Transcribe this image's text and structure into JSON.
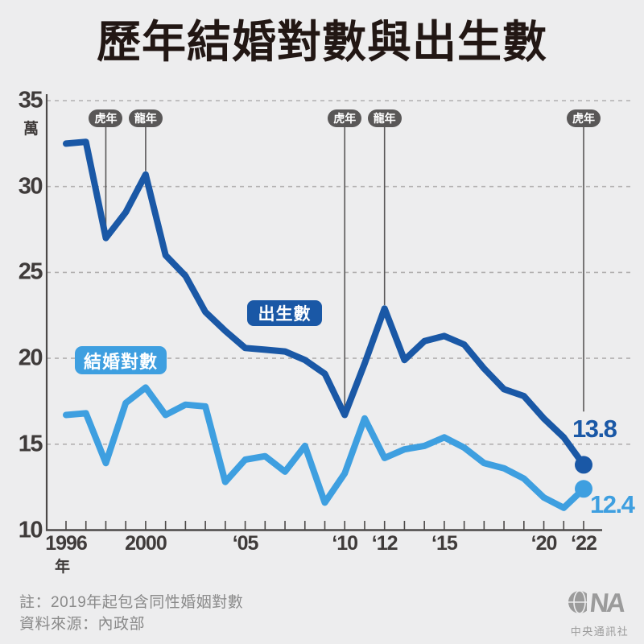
{
  "title": "歷年結婚對數與出生數",
  "chart_data": {
    "type": "line",
    "x": [
      1996,
      1997,
      1998,
      1999,
      2000,
      2001,
      2002,
      2003,
      2004,
      2005,
      2006,
      2007,
      2008,
      2009,
      2010,
      2011,
      2012,
      2013,
      2014,
      2015,
      2016,
      2017,
      2018,
      2019,
      2020,
      2021,
      2022
    ],
    "x_axis_unit": "年",
    "y_axis_unit": "萬",
    "y_ticks": [
      35,
      30,
      25,
      20,
      15,
      10
    ],
    "ylim": [
      10,
      35
    ],
    "grid": "dashed-horizontal",
    "x_tick_labels": [
      {
        "year": 1996,
        "label": "1996"
      },
      {
        "year": 2000,
        "label": "2000"
      },
      {
        "year": 2005,
        "label": "‘05"
      },
      {
        "year": 2010,
        "label": "‘10"
      },
      {
        "year": 2012,
        "label": "‘12"
      },
      {
        "year": 2015,
        "label": "‘15"
      },
      {
        "year": 2020,
        "label": "‘20"
      },
      {
        "year": 2022,
        "label": "‘22"
      }
    ],
    "series": [
      {
        "name": "出生數",
        "color": "#1a58a6",
        "end_label": "13.8",
        "values": [
          32.5,
          32.6,
          27.0,
          28.5,
          30.7,
          26.0,
          24.8,
          22.7,
          21.6,
          20.6,
          20.5,
          20.4,
          19.9,
          19.1,
          16.7,
          19.7,
          22.9,
          19.9,
          21.0,
          21.3,
          20.8,
          19.4,
          18.2,
          17.8,
          16.5,
          15.4,
          13.8
        ]
      },
      {
        "name": "結婚對數",
        "color": "#3e9fe0",
        "end_label": "12.4",
        "values": [
          16.7,
          16.8,
          13.9,
          17.4,
          18.3,
          16.7,
          17.3,
          17.2,
          12.8,
          14.1,
          14.3,
          13.4,
          14.9,
          11.6,
          13.3,
          16.5,
          14.2,
          14.7,
          14.9,
          15.4,
          14.8,
          13.9,
          13.6,
          13.0,
          11.9,
          11.3,
          12.4
        ]
      }
    ],
    "annotations": [
      {
        "label": "虎年",
        "year": 1998,
        "pointer_end_value": 27.3
      },
      {
        "label": "龍年",
        "year": 2000,
        "pointer_end_value": 30.9
      },
      {
        "label": "虎年",
        "year": 2010,
        "pointer_end_value": 16.9
      },
      {
        "label": "龍年",
        "year": 2012,
        "pointer_end_value": 23.1
      },
      {
        "label": "虎年",
        "year": 2022,
        "pointer_end_value": 16.9
      }
    ]
  },
  "footer": {
    "note": "註：2019年起包含同性婚姻對數",
    "source": "資料來源：內政部"
  },
  "logo": {
    "text": "CNA",
    "subtext": "中央通訊社"
  },
  "colors": {
    "background": "#ededee",
    "title_text": "#221714",
    "births_blue": "#1a58a6",
    "marriages_blue": "#3e9fe0",
    "zodiac_badge_gray": "#595757",
    "axis_gray": "#4c4948",
    "grid_gray": "#b2b0b0",
    "note_gray": "#8a8a8a",
    "logo_gray": "#9b9b9b"
  }
}
